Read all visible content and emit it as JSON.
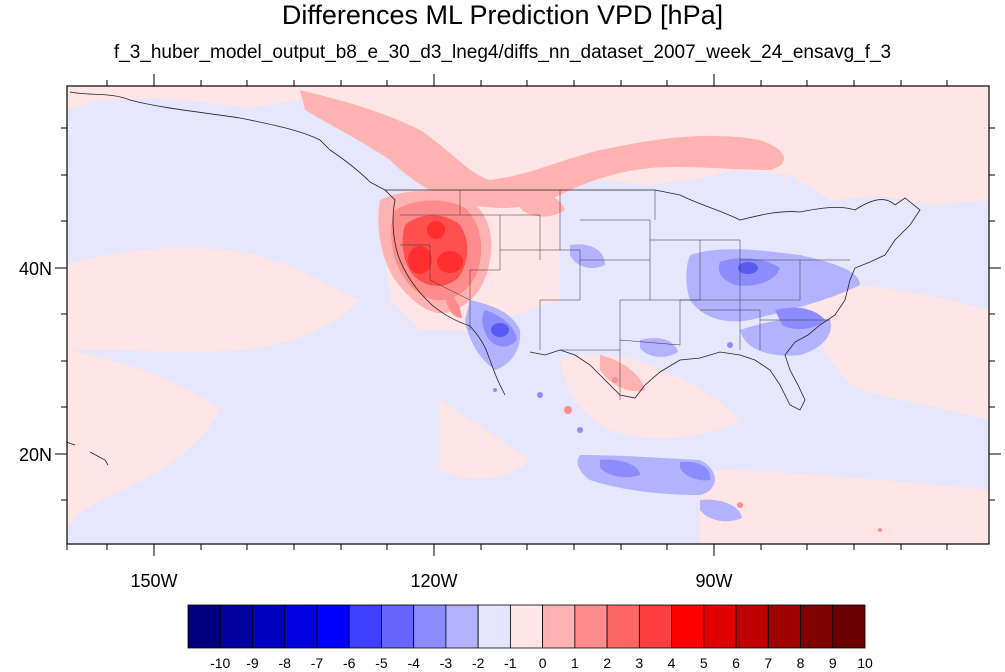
{
  "title": "Differences ML Prediction VPD [hPa]",
  "subtitle": "f_3_huber_model_output_b8_e_30_d3_lneg4/diffs_nn_dataset_2007_week_24_ensavg_f_3",
  "axes": {
    "lon_ticks": [
      "150W",
      "120W",
      "90W"
    ],
    "lat_ticks": [
      "40N",
      "20N"
    ],
    "lon_range": [
      -160,
      -60
    ],
    "lat_range": [
      10,
      60
    ]
  },
  "colorbar": {
    "labels": [
      "-10",
      "-9",
      "-8",
      "-7",
      "-6",
      "-5",
      "-4",
      "-3",
      "-2",
      "-1",
      "0",
      "1",
      "2",
      "3",
      "4",
      "5",
      "6",
      "7",
      "8",
      "9",
      "10"
    ],
    "colors": [
      "#00007f",
      "#00009f",
      "#0000bf",
      "#0000df",
      "#0000ff",
      "#3f3fff",
      "#6666ff",
      "#8c8cff",
      "#b2b2ff",
      "#e5e5ff",
      "#ffe5e5",
      "#ffb2b2",
      "#ff8c8c",
      "#ff6666",
      "#ff3f3f",
      "#ff0000",
      "#df0000",
      "#bf0000",
      "#9f0000",
      "#7f0000",
      "#6b0000"
    ]
  },
  "colors": {
    "background_field": "#e6e6fc",
    "positive_light": "#ffe5e5",
    "positive_mid": "#ff8c8c",
    "positive_strong": "#ff3333",
    "negative_mid": "#8c8cff",
    "negative_strong": "#5a5af0"
  }
}
